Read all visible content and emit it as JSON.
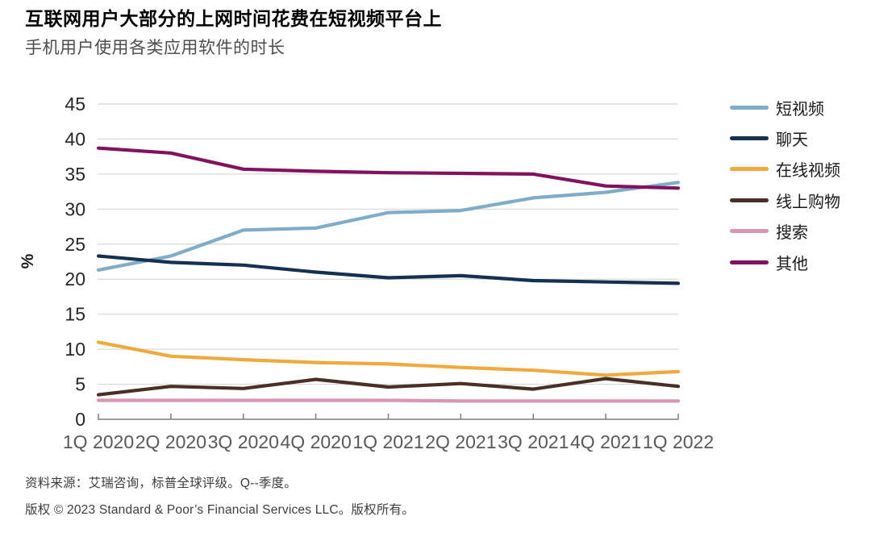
{
  "header": {
    "title": "互联网用户大部分的上网时间花费在短视频平台上",
    "subtitle": "手机用户使用各类应用软件的时长"
  },
  "footer": {
    "source": "资料来源：艾瑞咨询，标普全球评级。Q--季度。",
    "copyright": "版权 © 2023 Standard & Poor’s Financial Services LLC。版权所有。"
  },
  "chart_data": {
    "type": "line",
    "title": "",
    "xlabel": "",
    "ylabel": "%",
    "ylim": [
      0,
      45
    ],
    "ytick_step": 5,
    "grid": true,
    "legend_position": "right",
    "axis_color": "#7f7f7f",
    "grid_color": "#d8d8d8",
    "ytick_label_color": "#262626",
    "xtick_label_color": "#595959",
    "categories": [
      "1Q 2020",
      "2Q 2020",
      "3Q 2020",
      "4Q 2020",
      "1Q 2021",
      "2Q 2021",
      "3Q 2021",
      "4Q 2021",
      "1Q 2022"
    ],
    "series": [
      {
        "name": "短视频",
        "color": "#7DADC9",
        "values": [
          21.3,
          23.3,
          27.0,
          27.3,
          29.5,
          29.8,
          31.6,
          32.4,
          33.8
        ]
      },
      {
        "name": "聊天",
        "color": "#163050",
        "values": [
          23.3,
          22.4,
          22.0,
          21.0,
          20.2,
          20.5,
          19.8,
          19.6,
          19.4
        ]
      },
      {
        "name": "在线视频",
        "color": "#EFA93C",
        "values": [
          11.0,
          9.0,
          8.5,
          8.1,
          7.9,
          7.4,
          7.0,
          6.3,
          6.8
        ]
      },
      {
        "name": "线上购物",
        "color": "#4A3024",
        "values": [
          3.5,
          4.7,
          4.4,
          5.7,
          4.6,
          5.1,
          4.3,
          5.8,
          4.7
        ]
      },
      {
        "name": "搜索",
        "color": "#D897B4",
        "values": [
          2.7,
          2.7,
          2.7,
          2.7,
          2.7,
          2.6,
          2.6,
          2.6,
          2.6
        ]
      },
      {
        "name": "其他",
        "color": "#82125E",
        "values": [
          38.7,
          38.0,
          35.7,
          35.4,
          35.2,
          35.1,
          35.0,
          33.3,
          33.0
        ]
      }
    ]
  }
}
